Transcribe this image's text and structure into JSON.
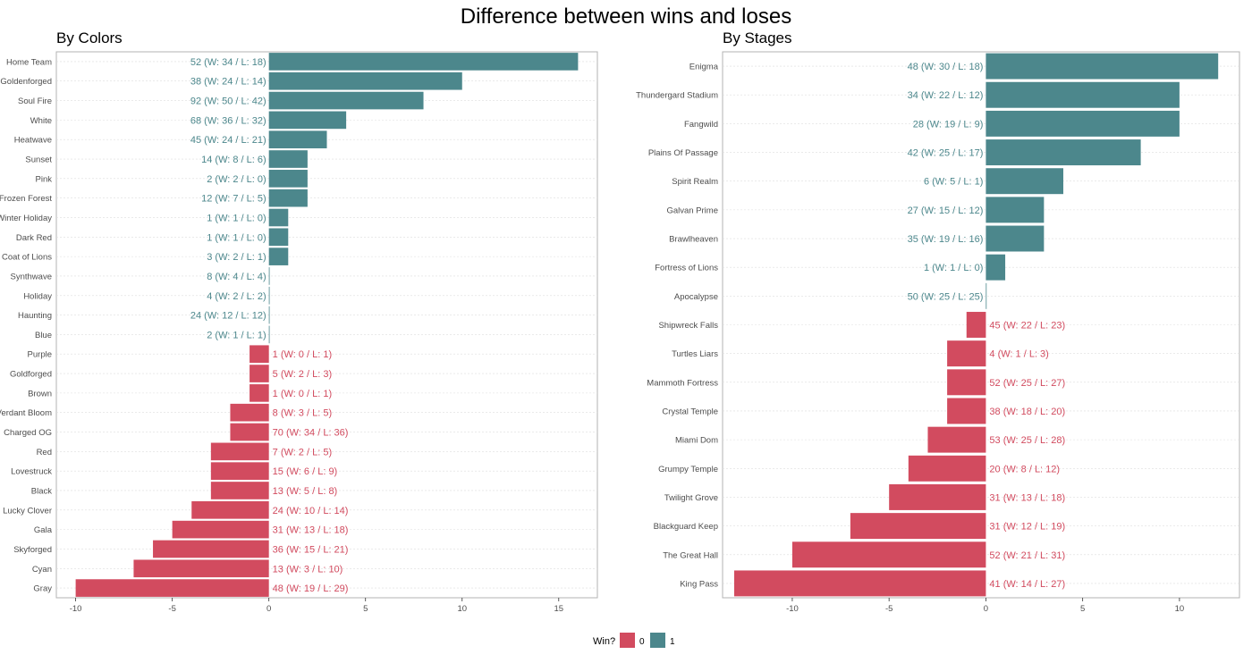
{
  "title": "Difference between wins and loses",
  "colors": {
    "loss": "#d24b5f",
    "win": "#4c878c",
    "grid": "#dddddd",
    "border": "#b3b3b3"
  },
  "legend": {
    "title": "Win?",
    "items": [
      {
        "label": "0",
        "color": "#d24b5f"
      },
      {
        "label": "1",
        "color": "#4c878c"
      }
    ]
  },
  "chart_data": [
    {
      "type": "bar",
      "orientation": "horizontal",
      "title": "By Colors",
      "xlim": [
        -11,
        17
      ],
      "xticks": [
        -10,
        -5,
        0,
        5,
        10,
        15
      ],
      "grid": true,
      "legend": "bottom",
      "categories": [
        "Home Team",
        "Goldenforged",
        "Soul Fire",
        "White",
        "Heatwave",
        "Sunset",
        "Pink",
        "Frozen Forest",
        "Winter Holiday",
        "Dark Red",
        "Coat of Lions",
        "Synthwave",
        "Holiday",
        "Haunting",
        "Blue",
        "Purple",
        "Goldforged",
        "Brown",
        "Verdant Bloom",
        "Charged OG",
        "Red",
        "Lovestruck",
        "Black",
        "Lucky Clover",
        "Gala",
        "Skyforged",
        "Cyan",
        "Gray"
      ],
      "values": [
        16,
        10,
        8,
        4,
        3,
        2,
        2,
        2,
        1,
        1,
        1,
        0,
        0,
        0,
        0,
        -1,
        -1,
        -1,
        -2,
        -2,
        -3,
        -3,
        -3,
        -4,
        -5,
        -6,
        -7,
        -10
      ],
      "win": [
        1,
        1,
        1,
        1,
        1,
        1,
        1,
        1,
        1,
        1,
        1,
        1,
        1,
        1,
        1,
        0,
        0,
        0,
        0,
        0,
        0,
        0,
        0,
        0,
        0,
        0,
        0,
        0
      ],
      "labels": [
        "52 (W: 34 / L: 18)",
        "38 (W: 24 / L: 14)",
        "92 (W: 50 / L: 42)",
        "68 (W: 36 / L: 32)",
        "45 (W: 24 / L: 21)",
        "14 (W: 8 / L: 6)",
        "2 (W: 2 / L: 0)",
        "12 (W: 7 / L: 5)",
        "1 (W: 1 / L: 0)",
        "1 (W: 1 / L: 0)",
        "3 (W: 2 / L: 1)",
        "8 (W: 4 / L: 4)",
        "4 (W: 2 / L: 2)",
        "24 (W: 12 / L: 12)",
        "2 (W: 1 / L: 1)",
        "1 (W: 0 / L: 1)",
        "5 (W: 2 / L: 3)",
        "1 (W: 0 / L: 1)",
        "8 (W: 3 / L: 5)",
        "70 (W: 34 / L: 36)",
        "7 (W: 2 / L: 5)",
        "15 (W: 6 / L: 9)",
        "13 (W: 5 / L: 8)",
        "24 (W: 10 / L: 14)",
        "31 (W: 13 / L: 18)",
        "36 (W: 15 / L: 21)",
        "13 (W: 3 / L: 10)",
        "48 (W: 19 / L: 29)"
      ]
    },
    {
      "type": "bar",
      "orientation": "horizontal",
      "title": "By Stages",
      "xlim": [
        -13.6,
        13.1
      ],
      "xticks": [
        -10,
        -5,
        0,
        5,
        10
      ],
      "grid": true,
      "legend": "bottom",
      "categories": [
        "Enigma",
        "Thundergard Stadium",
        "Fangwild",
        "Plains Of Passage",
        "Spirit Realm",
        "Galvan Prime",
        "Brawlheaven",
        "Fortress of Lions",
        "Apocalypse",
        "Shipwreck Falls",
        "Turtles Liars",
        "Mammoth Fortress",
        "Crystal Temple",
        "Miami Dom",
        "Grumpy Temple",
        "Twilight Grove",
        "Blackguard Keep",
        "The Great Hall",
        "King Pass"
      ],
      "values": [
        12,
        10,
        10,
        8,
        4,
        3,
        3,
        1,
        0,
        -1,
        -2,
        -2,
        -2,
        -3,
        -4,
        -5,
        -7,
        -10,
        -13
      ],
      "win": [
        1,
        1,
        1,
        1,
        1,
        1,
        1,
        1,
        1,
        0,
        0,
        0,
        0,
        0,
        0,
        0,
        0,
        0,
        0
      ],
      "labels": [
        "48 (W: 30 / L: 18)",
        "34 (W: 22 / L: 12)",
        "28 (W: 19 / L: 9)",
        "42 (W: 25 / L: 17)",
        "6 (W: 5 / L: 1)",
        "27 (W: 15 / L: 12)",
        "35 (W: 19 / L: 16)",
        "1 (W: 1 / L: 0)",
        "50 (W: 25 / L: 25)",
        "45 (W: 22 / L: 23)",
        "4 (W: 1 / L: 3)",
        "52 (W: 25 / L: 27)",
        "38 (W: 18 / L: 20)",
        "53 (W: 25 / L: 28)",
        "20 (W: 8 / L: 12)",
        "31 (W: 13 / L: 18)",
        "31 (W: 12 / L: 19)",
        "52 (W: 21 / L: 31)",
        "41 (W: 14 / L: 27)"
      ]
    }
  ]
}
